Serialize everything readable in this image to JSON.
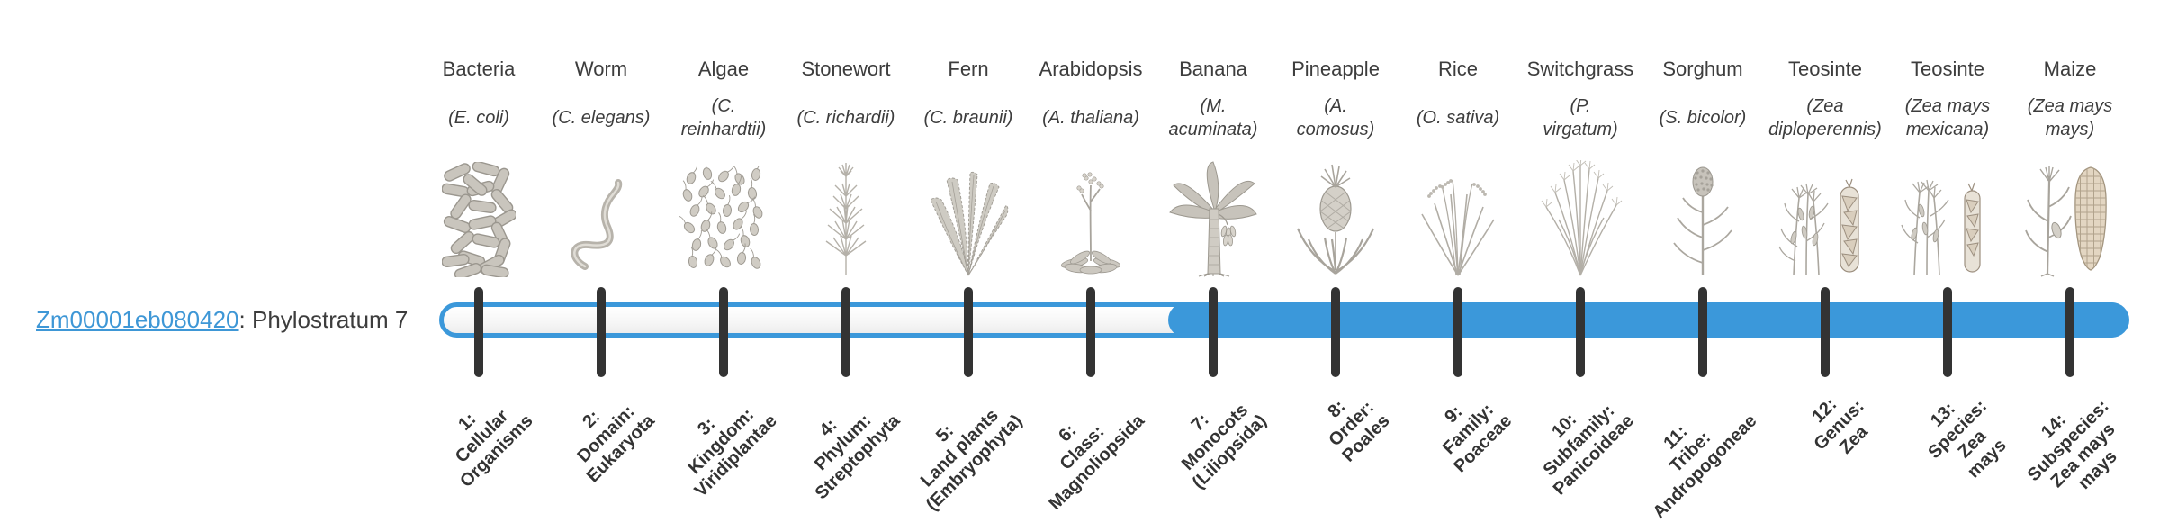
{
  "gene": {
    "id_label": "Zm00001eb080420",
    "suffix": ": Phylostratum 7",
    "phylostratum": 7
  },
  "timeline": {
    "strata_count": 14,
    "highlighted_from_stratum": 7,
    "bar_color": "#3b98da",
    "tick_color": "#333333",
    "track_fill": "#f6f6f6"
  },
  "colors": {
    "link_blue": "#3e97d6",
    "text_dark": "#3d3d3d",
    "label_bold": "#333333",
    "illustration_gray": "#c5c1b9"
  },
  "taxa": [
    {
      "common": "Bacteria",
      "latin_lines": [
        "(E. coli)"
      ],
      "stratum_lines": [
        "1:",
        "Cellular",
        "Organisms"
      ],
      "icon": "bacteria-illustration"
    },
    {
      "common": "Worm",
      "latin_lines": [
        "(C. elegans)"
      ],
      "stratum_lines": [
        "2:",
        "Domain:",
        "Eukaryota"
      ],
      "icon": "worm-illustration"
    },
    {
      "common": "Algae",
      "latin_lines": [
        "(C.",
        "reinhardtii)"
      ],
      "stratum_lines": [
        "3:",
        "Kingdom:",
        "Viridiplantae"
      ],
      "icon": "algae-illustration"
    },
    {
      "common": "Stonewort",
      "latin_lines": [
        "(C. richardii)"
      ],
      "stratum_lines": [
        "4:",
        "Phylum:",
        "Streptophyta"
      ],
      "icon": "stonewort-illustration"
    },
    {
      "common": "Fern",
      "latin_lines": [
        "(C. braunii)"
      ],
      "stratum_lines": [
        "5:",
        "Land plants",
        "(Embryophyta)"
      ],
      "icon": "fern-illustration"
    },
    {
      "common": "Arabidopsis",
      "latin_lines": [
        "(A. thaliana)"
      ],
      "stratum_lines": [
        "6:",
        "Class:",
        "Magnoliopsida"
      ],
      "icon": "arabidopsis-illustration"
    },
    {
      "common": "Banana",
      "latin_lines": [
        "(M.",
        "acuminata)"
      ],
      "stratum_lines": [
        "7:",
        "Monocots",
        "(Liliopsida)"
      ],
      "icon": "banana-plant-illustration"
    },
    {
      "common": "Pineapple",
      "latin_lines": [
        "(A.",
        "comosus)"
      ],
      "stratum_lines": [
        "8:",
        "Order:",
        "Poales"
      ],
      "icon": "pineapple-illustration"
    },
    {
      "common": "Rice",
      "latin_lines": [
        "(O. sativa)"
      ],
      "stratum_lines": [
        "9:",
        "Family:",
        "Poaceae"
      ],
      "icon": "rice-plant-illustration"
    },
    {
      "common": "Switchgrass",
      "latin_lines": [
        "(P.",
        "virgatum)"
      ],
      "stratum_lines": [
        "10:",
        "Subfamily:",
        "Panicoideae"
      ],
      "icon": "switchgrass-illustration"
    },
    {
      "common": "Sorghum",
      "latin_lines": [
        "(S. bicolor)"
      ],
      "stratum_lines": [
        "11:",
        "Tribe:",
        "Andropogoneae"
      ],
      "icon": "sorghum-illustration"
    },
    {
      "common": "Teosinte",
      "latin_lines": [
        "(Zea",
        "diploperennis)"
      ],
      "stratum_lines": [
        "12:",
        "Genus:",
        "Zea"
      ],
      "icon": "teosinte-diploperennis-illustration"
    },
    {
      "common": "Teosinte",
      "latin_lines": [
        "(Zea mays",
        "mexicana)"
      ],
      "stratum_lines": [
        "13:",
        "Species:",
        "Zea",
        "mays"
      ],
      "icon": "teosinte-mexicana-illustration"
    },
    {
      "common": "Maize",
      "latin_lines": [
        "(Zea mays",
        "mays)"
      ],
      "stratum_lines": [
        "14:",
        "Subspecies:",
        "Zea mays",
        "mays"
      ],
      "icon": "maize-plant-illustration"
    }
  ]
}
